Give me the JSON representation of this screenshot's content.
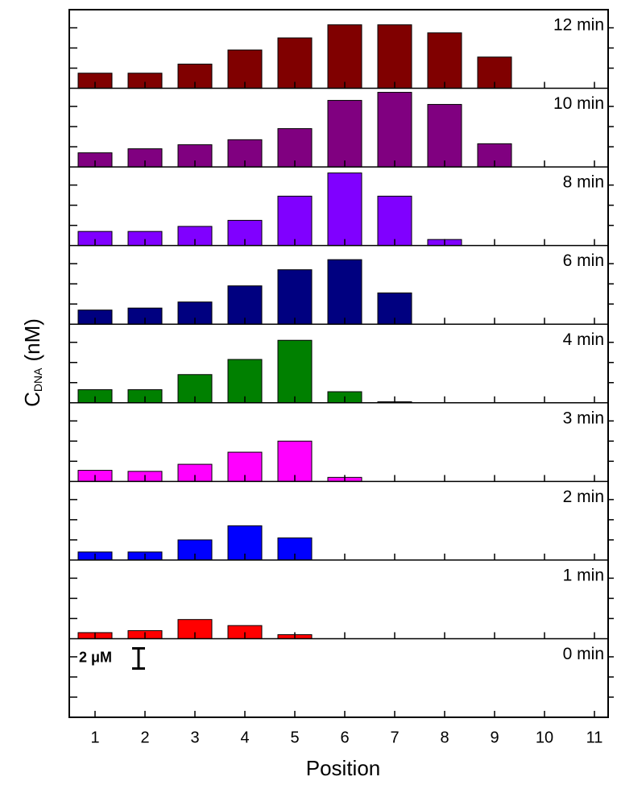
{
  "chart_data": {
    "type": "bar",
    "categories": [
      "1",
      "2",
      "3",
      "4",
      "5",
      "6",
      "7",
      "8",
      "9",
      "10",
      "11"
    ],
    "xlabel": "Position",
    "ylabel": {
      "main": "C",
      "sub": "DNA",
      "unit": "(nM)"
    },
    "ylim": [
      0,
      7.8
    ],
    "yticks": [
      2,
      4,
      6
    ],
    "scale_bar": {
      "label": "2 μM",
      "value": 2
    },
    "panels": [
      {
        "title": "12 min",
        "color": "#800000",
        "values": [
          1.5,
          1.5,
          2.4,
          3.8,
          5.0,
          6.3,
          6.3,
          5.5,
          3.1,
          0,
          0
        ]
      },
      {
        "title": "10 min",
        "color": "#800080",
        "values": [
          1.4,
          1.8,
          2.2,
          2.7,
          3.8,
          6.6,
          7.4,
          6.2,
          2.3,
          0,
          0
        ]
      },
      {
        "title": "8 min",
        "color": "#8000ff",
        "values": [
          1.4,
          1.4,
          1.9,
          2.5,
          4.9,
          7.2,
          4.9,
          0.6,
          0,
          0,
          0
        ]
      },
      {
        "title": "6 min",
        "color": "#000080",
        "values": [
          1.4,
          1.6,
          2.2,
          3.8,
          5.4,
          6.4,
          3.1,
          0,
          0,
          0,
          0
        ]
      },
      {
        "title": "4 min",
        "color": "#008000",
        "values": [
          1.3,
          1.3,
          2.8,
          4.3,
          6.2,
          1.1,
          0.1,
          0,
          0,
          0,
          0
        ]
      },
      {
        "title": "3 min",
        "color": "#ff00ff",
        "values": [
          1.1,
          1.0,
          1.7,
          2.9,
          4.0,
          0.4,
          0,
          0,
          0,
          0,
          0
        ]
      },
      {
        "title": "2 min",
        "color": "#0000ff",
        "values": [
          0.8,
          0.8,
          2.0,
          3.4,
          2.2,
          0,
          0,
          0,
          0,
          0,
          0
        ]
      },
      {
        "title": "1 min",
        "color": "#ff0000",
        "values": [
          0.6,
          0.8,
          1.9,
          1.3,
          0.4,
          0,
          0,
          0,
          0,
          0,
          0
        ]
      },
      {
        "title": "0 min",
        "color": "#000000",
        "values": [
          0,
          0,
          0,
          0,
          0,
          0,
          0,
          0,
          0,
          0,
          0
        ]
      }
    ]
  }
}
